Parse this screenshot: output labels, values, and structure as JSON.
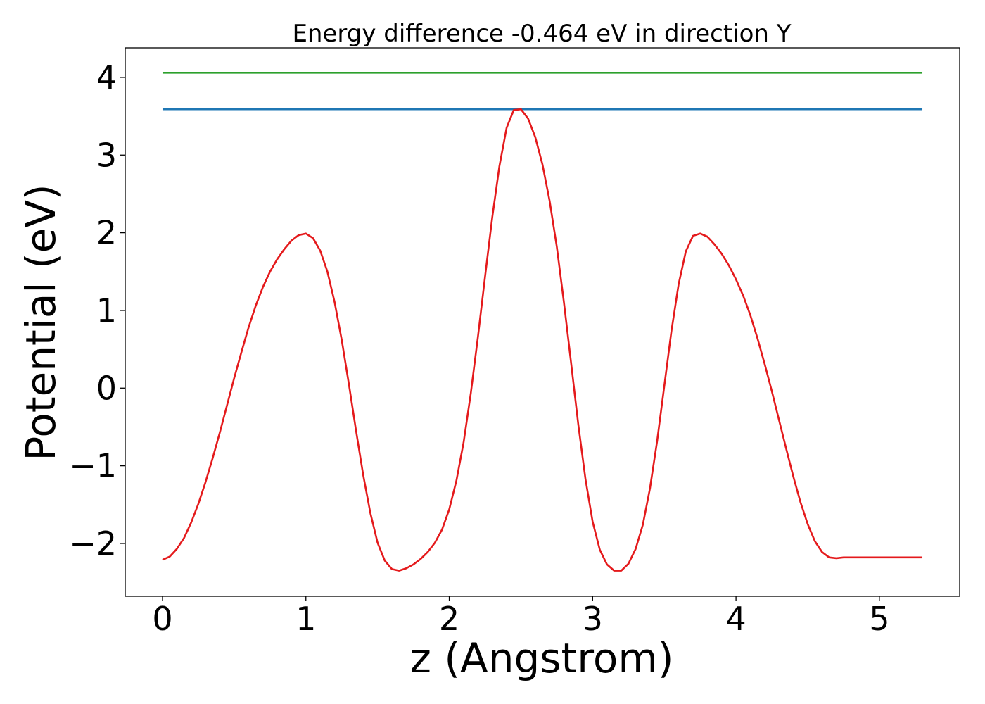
{
  "chart_data": {
    "type": "line",
    "title": "Energy difference -0.464 eV in direction Y",
    "xlabel": "z (Angstrom)",
    "ylabel": "Potential (eV)",
    "xlim": [
      -0.26,
      5.56
    ],
    "ylim": [
      -2.68,
      4.38
    ],
    "xticks": [
      0,
      1,
      2,
      3,
      4,
      5
    ],
    "xtick_labels": [
      "0",
      "1",
      "2",
      "3",
      "4",
      "5"
    ],
    "yticks": [
      -2,
      -1,
      0,
      1,
      2,
      3,
      4
    ],
    "ytick_labels": [
      "−2",
      "−1",
      "0",
      "1",
      "2",
      "3",
      "4"
    ],
    "grid": false,
    "series": [
      {
        "color": "#2ca02c",
        "x": [
          0,
          5.3
        ],
        "y": [
          4.06,
          4.06
        ]
      },
      {
        "color": "#1f77b4",
        "x": [
          0,
          5.3
        ],
        "y": [
          3.59,
          3.59
        ]
      },
      {
        "color": "#e41a1c",
        "x": [
          0,
          0.05,
          0.1,
          0.15,
          0.2,
          0.25,
          0.3,
          0.35,
          0.4,
          0.45,
          0.5,
          0.55,
          0.6,
          0.65,
          0.7,
          0.75,
          0.8,
          0.85,
          0.9,
          0.95,
          1.0,
          1.05,
          1.1,
          1.15,
          1.2,
          1.25,
          1.3,
          1.35,
          1.4,
          1.45,
          1.5,
          1.55,
          1.6,
          1.65,
          1.7,
          1.75,
          1.8,
          1.85,
          1.9,
          1.95,
          2.0,
          2.05,
          2.1,
          2.15,
          2.2,
          2.25,
          2.3,
          2.35,
          2.4,
          2.45,
          2.5,
          2.55,
          2.6,
          2.65,
          2.7,
          2.75,
          2.8,
          2.85,
          2.9,
          2.95,
          3.0,
          3.05,
          3.1,
          3.15,
          3.2,
          3.25,
          3.3,
          3.35,
          3.4,
          3.45,
          3.5,
          3.55,
          3.6,
          3.65,
          3.7,
          3.75,
          3.8,
          3.85,
          3.9,
          3.95,
          4.0,
          4.05,
          4.1,
          4.15,
          4.2,
          4.25,
          4.3,
          4.35,
          4.4,
          4.45,
          4.5,
          4.55,
          4.6,
          4.65,
          4.7,
          4.75,
          4.8,
          4.85,
          4.9,
          4.95,
          5.0,
          5.05,
          5.1,
          5.15,
          5.2,
          5.25,
          5.3
        ],
        "y": [
          -2.21,
          -2.17,
          -2.07,
          -1.93,
          -1.73,
          -1.49,
          -1.21,
          -0.9,
          -0.57,
          -0.22,
          0.13,
          0.46,
          0.78,
          1.06,
          1.3,
          1.5,
          1.66,
          1.79,
          1.9,
          1.97,
          1.99,
          1.93,
          1.77,
          1.5,
          1.11,
          0.62,
          0.05,
          -0.55,
          -1.12,
          -1.61,
          -1.99,
          -2.22,
          -2.33,
          -2.35,
          -2.32,
          -2.27,
          -2.2,
          -2.11,
          -1.99,
          -1.82,
          -1.56,
          -1.19,
          -0.7,
          -0.07,
          0.66,
          1.44,
          2.2,
          2.86,
          3.35,
          3.58,
          3.59,
          3.47,
          3.23,
          2.88,
          2.41,
          1.82,
          1.1,
          0.32,
          -0.47,
          -1.17,
          -1.72,
          -2.08,
          -2.27,
          -2.35,
          -2.35,
          -2.26,
          -2.07,
          -1.76,
          -1.29,
          -0.68,
          0.03,
          0.74,
          1.34,
          1.76,
          1.96,
          1.99,
          1.95,
          1.85,
          1.73,
          1.58,
          1.4,
          1.19,
          0.94,
          0.64,
          0.31,
          -0.04,
          -0.41,
          -0.78,
          -1.14,
          -1.47,
          -1.75,
          -1.97,
          -2.11,
          -2.18,
          -2.19,
          -2.18,
          -2.18,
          -2.18,
          -2.18,
          -2.18,
          -2.18,
          -2.18,
          -2.18,
          -2.18,
          -2.18,
          -2.18,
          -2.18
        ]
      }
    ]
  }
}
